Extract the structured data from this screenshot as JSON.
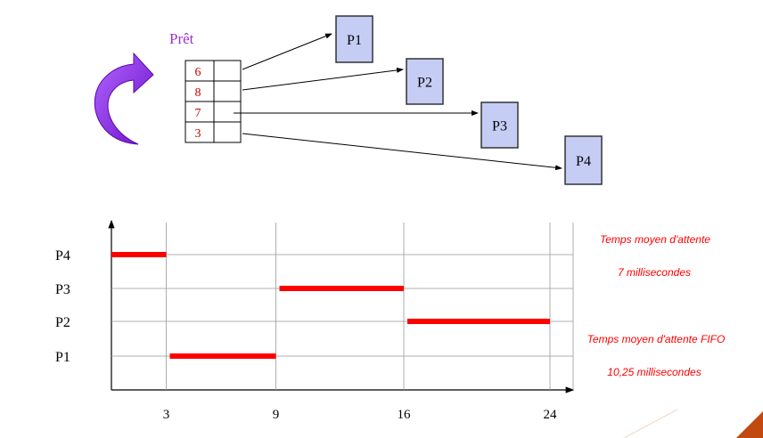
{
  "queue": {
    "title": "Prêt",
    "entries": [
      "6",
      "8",
      "7",
      "3"
    ]
  },
  "processes": [
    "P1",
    "P2",
    "P3",
    "P4"
  ],
  "chart_data": {
    "type": "gantt",
    "rows": [
      "P1",
      "P2",
      "P3",
      "P4"
    ],
    "x_ticks": [
      3,
      9,
      16,
      24
    ],
    "bars": [
      {
        "process": "P4",
        "start": 0,
        "end": 3
      },
      {
        "process": "P1",
        "start": 3,
        "end": 9
      },
      {
        "process": "P3",
        "start": 9,
        "end": 16
      },
      {
        "process": "P2",
        "start": 16,
        "end": 24
      }
    ],
    "bar_color": "#ff0000",
    "grid": true
  },
  "annotations": {
    "sjf_title": "Temps moyen d'attente",
    "sjf_value": "7 millisecondes",
    "fifo_title": "Temps moyen d'attente FIFO",
    "fifo_value": "10,25 millisecondes"
  },
  "colors": {
    "process_box": "#c5cdf5",
    "arrow_purple": "#8a1ee0",
    "accent_red": "#ff0000"
  }
}
